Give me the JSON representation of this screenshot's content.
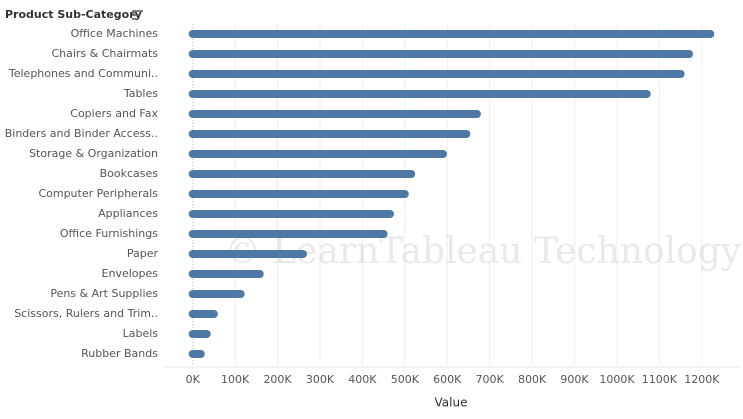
{
  "chart_data": {
    "type": "bar",
    "orientation": "horizontal",
    "category_label": "Product Sub-Category",
    "x_label": "Value",
    "watermark": "© LearnTableau Technology",
    "categories": [
      "Office Machines",
      "Chairs & Chairmats",
      "Telephones and Communi..",
      "Tables",
      "Copiers and Fax",
      "Binders and Binder Access..",
      "Storage & Organization",
      "Bookcases",
      "Computer Peripherals",
      "Appliances",
      "Office Furnishings",
      "Paper",
      "Envelopes",
      "Pens & Art Supplies",
      "Scissors, Rulers and Trim..",
      "Labels",
      "Rubber Bands"
    ],
    "values": [
      1220000,
      1170000,
      1150000,
      1070000,
      670000,
      645000,
      590000,
      515000,
      500000,
      465000,
      450000,
      260000,
      158000,
      113000,
      50000,
      33000,
      19000
    ],
    "color": "#4e79a7",
    "xlim": [
      -70000,
      1290000
    ],
    "xticks": [
      {
        "value": 0,
        "label": "0K"
      },
      {
        "value": 100000,
        "label": "100K"
      },
      {
        "value": 200000,
        "label": "200K"
      },
      {
        "value": 300000,
        "label": "300K"
      },
      {
        "value": 400000,
        "label": "400K"
      },
      {
        "value": 500000,
        "label": "500K"
      },
      {
        "value": 600000,
        "label": "600K"
      },
      {
        "value": 700000,
        "label": "700K"
      },
      {
        "value": 800000,
        "label": "800K"
      },
      {
        "value": 900000,
        "label": "900K"
      },
      {
        "value": 1000000,
        "label": "1000K"
      },
      {
        "value": 1100000,
        "label": "1100K"
      },
      {
        "value": 1200000,
        "label": "1200K"
      }
    ],
    "grid": true
  }
}
